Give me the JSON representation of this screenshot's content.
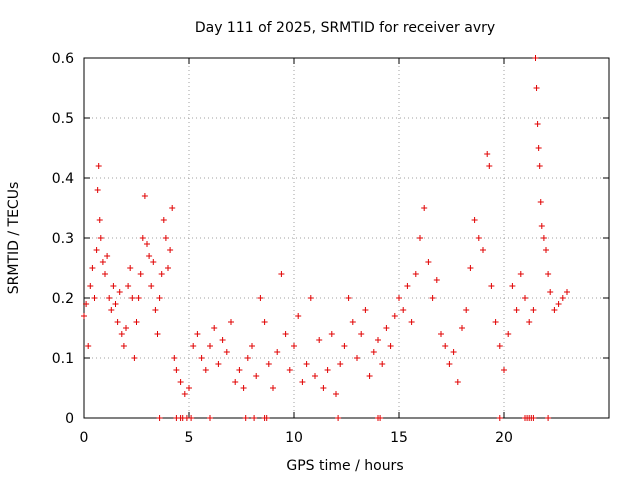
{
  "chart_data": {
    "type": "scatter",
    "title": "Day 111 of 2025, SRMTID for receiver avry",
    "xlabel": "GPS time / hours",
    "ylabel": "SRMTID / TECUs",
    "xlim": [
      0,
      25
    ],
    "ylim": [
      0,
      0.6
    ],
    "xticks": [
      0,
      5,
      10,
      15,
      20
    ],
    "xtick_labels": [
      "0",
      "5",
      "10",
      "15",
      "20"
    ],
    "yticks": [
      0,
      0.1,
      0.2,
      0.3,
      0.4,
      0.5,
      0.6
    ],
    "ytick_labels": [
      "0",
      "0.1",
      "0.2",
      "0.3",
      "0.4",
      "0.5",
      "0.6"
    ],
    "grid": true,
    "marker": "+",
    "color": "#e00000",
    "series": [
      {
        "name": "SRMTID",
        "points": [
          [
            0.0,
            0.17
          ],
          [
            0.1,
            0.19
          ],
          [
            0.2,
            0.12
          ],
          [
            0.3,
            0.22
          ],
          [
            0.4,
            0.25
          ],
          [
            0.5,
            0.2
          ],
          [
            0.6,
            0.28
          ],
          [
            0.65,
            0.38
          ],
          [
            0.7,
            0.42
          ],
          [
            0.75,
            0.33
          ],
          [
            0.8,
            0.3
          ],
          [
            0.9,
            0.26
          ],
          [
            1.0,
            0.24
          ],
          [
            1.1,
            0.27
          ],
          [
            1.2,
            0.2
          ],
          [
            1.3,
            0.18
          ],
          [
            1.4,
            0.22
          ],
          [
            1.5,
            0.19
          ],
          [
            1.6,
            0.16
          ],
          [
            1.7,
            0.21
          ],
          [
            1.8,
            0.14
          ],
          [
            1.9,
            0.12
          ],
          [
            2.0,
            0.15
          ],
          [
            2.1,
            0.22
          ],
          [
            2.2,
            0.25
          ],
          [
            2.3,
            0.2
          ],
          [
            2.4,
            0.1
          ],
          [
            2.5,
            0.16
          ],
          [
            2.6,
            0.2
          ],
          [
            2.7,
            0.24
          ],
          [
            2.8,
            0.3
          ],
          [
            2.9,
            0.37
          ],
          [
            3.0,
            0.29
          ],
          [
            3.1,
            0.27
          ],
          [
            3.2,
            0.22
          ],
          [
            3.3,
            0.26
          ],
          [
            3.4,
            0.18
          ],
          [
            3.5,
            0.14
          ],
          [
            3.6,
            0.2
          ],
          [
            3.7,
            0.24
          ],
          [
            3.8,
            0.33
          ],
          [
            3.9,
            0.3
          ],
          [
            4.0,
            0.25
          ],
          [
            4.1,
            0.28
          ],
          [
            4.2,
            0.35
          ],
          [
            4.3,
            0.1
          ],
          [
            4.4,
            0.08
          ],
          [
            4.6,
            0.06
          ],
          [
            4.8,
            0.04
          ],
          [
            5.0,
            0.05
          ],
          [
            5.2,
            0.12
          ],
          [
            5.4,
            0.14
          ],
          [
            5.6,
            0.1
          ],
          [
            5.8,
            0.08
          ],
          [
            6.0,
            0.12
          ],
          [
            6.2,
            0.15
          ],
          [
            6.4,
            0.09
          ],
          [
            6.6,
            0.13
          ],
          [
            6.8,
            0.11
          ],
          [
            7.0,
            0.16
          ],
          [
            7.2,
            0.06
          ],
          [
            7.4,
            0.08
          ],
          [
            7.6,
            0.05
          ],
          [
            7.8,
            0.1
          ],
          [
            8.0,
            0.12
          ],
          [
            8.2,
            0.07
          ],
          [
            8.4,
            0.2
          ],
          [
            8.6,
            0.16
          ],
          [
            8.8,
            0.09
          ],
          [
            9.0,
            0.05
          ],
          [
            9.2,
            0.11
          ],
          [
            9.4,
            0.24
          ],
          [
            9.6,
            0.14
          ],
          [
            9.8,
            0.08
          ],
          [
            10.0,
            0.12
          ],
          [
            10.2,
            0.17
          ],
          [
            10.4,
            0.06
          ],
          [
            10.6,
            0.09
          ],
          [
            10.8,
            0.2
          ],
          [
            11.0,
            0.07
          ],
          [
            11.2,
            0.13
          ],
          [
            11.4,
            0.05
          ],
          [
            11.6,
            0.08
          ],
          [
            11.8,
            0.14
          ],
          [
            12.0,
            0.04
          ],
          [
            12.2,
            0.09
          ],
          [
            12.4,
            0.12
          ],
          [
            12.6,
            0.2
          ],
          [
            12.8,
            0.16
          ],
          [
            13.0,
            0.1
          ],
          [
            13.2,
            0.14
          ],
          [
            13.4,
            0.18
          ],
          [
            13.6,
            0.07
          ],
          [
            13.8,
            0.11
          ],
          [
            14.0,
            0.13
          ],
          [
            14.2,
            0.09
          ],
          [
            14.4,
            0.15
          ],
          [
            14.6,
            0.12
          ],
          [
            14.8,
            0.17
          ],
          [
            15.0,
            0.2
          ],
          [
            15.2,
            0.18
          ],
          [
            15.4,
            0.22
          ],
          [
            15.6,
            0.16
          ],
          [
            15.8,
            0.24
          ],
          [
            16.0,
            0.3
          ],
          [
            16.2,
            0.35
          ],
          [
            16.4,
            0.26
          ],
          [
            16.6,
            0.2
          ],
          [
            16.8,
            0.23
          ],
          [
            17.0,
            0.14
          ],
          [
            17.2,
            0.12
          ],
          [
            17.4,
            0.09
          ],
          [
            17.6,
            0.11
          ],
          [
            17.8,
            0.06
          ],
          [
            18.0,
            0.15
          ],
          [
            18.2,
            0.18
          ],
          [
            18.4,
            0.25
          ],
          [
            18.6,
            0.33
          ],
          [
            18.8,
            0.3
          ],
          [
            19.0,
            0.28
          ],
          [
            19.2,
            0.44
          ],
          [
            19.3,
            0.42
          ],
          [
            19.4,
            0.22
          ],
          [
            19.6,
            0.16
          ],
          [
            19.8,
            0.12
          ],
          [
            20.0,
            0.08
          ],
          [
            20.2,
            0.14
          ],
          [
            20.4,
            0.22
          ],
          [
            20.6,
            0.18
          ],
          [
            20.8,
            0.24
          ],
          [
            21.0,
            0.2
          ],
          [
            21.2,
            0.16
          ],
          [
            21.4,
            0.18
          ],
          [
            21.5,
            0.6
          ],
          [
            21.55,
            0.55
          ],
          [
            21.6,
            0.49
          ],
          [
            21.65,
            0.45
          ],
          [
            21.7,
            0.42
          ],
          [
            21.75,
            0.36
          ],
          [
            21.8,
            0.32
          ],
          [
            21.9,
            0.3
          ],
          [
            22.0,
            0.28
          ],
          [
            22.1,
            0.24
          ],
          [
            22.2,
            0.21
          ],
          [
            22.4,
            0.18
          ],
          [
            22.6,
            0.19
          ],
          [
            22.8,
            0.2
          ],
          [
            23.0,
            0.21
          ]
        ]
      }
    ],
    "zero_markers": [
      3.6,
      4.4,
      4.6,
      4.7,
      4.9,
      5.1,
      6.0,
      7.7,
      8.1,
      8.6,
      8.7,
      12.1,
      14.0,
      14.1,
      19.8,
      21.0,
      21.1,
      21.2,
      21.3,
      21.4,
      22.1
    ]
  }
}
